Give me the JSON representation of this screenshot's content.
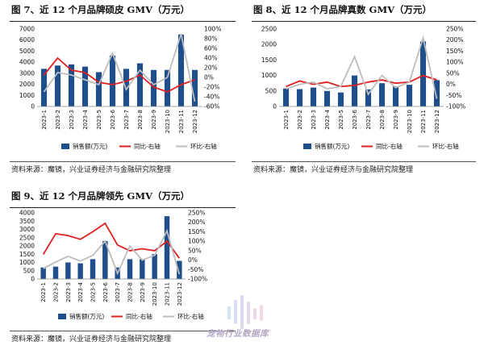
{
  "figures": [
    {
      "id": "fig7",
      "title": "图 7、近 12 个月品牌硕皮 GMV（万元）",
      "source": "资料来源：魔镜，兴业证券经济与金融研究院整理"
    },
    {
      "id": "fig8",
      "title": "图 8、近 12 个月品牌真数 GMV（万元）",
      "source": "资料来源：魔镜，兴业证券经济与金融研究院整理"
    },
    {
      "id": "fig9",
      "title": "图 9、近 12 个月品牌领先 GMV（万元）",
      "source": "资料来源：魔镜，兴业证券经济与金融研究院整理"
    }
  ],
  "watermark": {
    "text": "宠物行业数据库"
  },
  "colors": {
    "bar": "#1f4e8c",
    "yoy": "#e02020",
    "mom": "#bdbdbd"
  },
  "chart_data": [
    {
      "type": "bar",
      "categories": [
        "2023-1",
        "2023-2",
        "2023-3",
        "2023-4",
        "2023-5",
        "2023-6",
        "2023-7",
        "2023-8",
        "2023-9",
        "2023-10",
        "2023-11",
        "2023-12"
      ],
      "series": [
        {
          "name": "销售额(万元)",
          "axis": "left",
          "kind": "bar",
          "values": [
            3400,
            3700,
            3800,
            3600,
            3100,
            4600,
            3400,
            3900,
            3300,
            3300,
            6500,
            3300
          ]
        },
        {
          "name": "同比-右轴",
          "axis": "right",
          "kind": "line",
          "values": [
            5,
            40,
            15,
            10,
            -10,
            -15,
            -8,
            5,
            -20,
            -30,
            -15,
            -5
          ]
        },
        {
          "name": "环比-右轴",
          "axis": "right",
          "kind": "line",
          "values": [
            -30,
            10,
            5,
            -5,
            -15,
            50,
            -25,
            15,
            -15,
            0,
            90,
            -50
          ]
        }
      ],
      "left_ticks": [
        "0",
        "1000",
        "2000",
        "3000",
        "4000",
        "5000",
        "6000",
        "7000"
      ],
      "right_ticks": [
        "-60%",
        "-40%",
        "-20%",
        "0%",
        "20%",
        "40%",
        "60%",
        "80%",
        "100%"
      ],
      "ylim": [
        0,
        7000
      ],
      "y2lim": [
        -60,
        100
      ],
      "legend": [
        "销售额(万元)",
        "同比-右轴",
        "环比-右轴"
      ],
      "legend_position": "bottom"
    },
    {
      "type": "bar",
      "categories": [
        "2023-1",
        "2023-2",
        "2023-3",
        "2023-4",
        "2023-5",
        "2023-6",
        "2023-7",
        "2023-8",
        "2023-9",
        "2023-10",
        "2023-11",
        "2023-12"
      ],
      "series": [
        {
          "name": "销售额(万元)",
          "axis": "left",
          "kind": "bar",
          "values": [
            580,
            560,
            610,
            500,
            450,
            1000,
            550,
            750,
            650,
            700,
            2100,
            850
          ]
        },
        {
          "name": "同比-右轴",
          "axis": "right",
          "kind": "line",
          "values": [
            -10,
            15,
            0,
            10,
            -10,
            -5,
            10,
            20,
            5,
            10,
            40,
            20
          ]
        },
        {
          "name": "环比-右轴",
          "axis": "right",
          "kind": "line",
          "values": [
            -20,
            0,
            10,
            -20,
            -10,
            125,
            -45,
            40,
            -15,
            10,
            210,
            -65
          ]
        }
      ],
      "left_ticks": [
        "0",
        "500",
        "1000",
        "1500",
        "2000",
        "2500"
      ],
      "right_ticks": [
        "-100%",
        "-50%",
        "0%",
        "50%",
        "100%",
        "150%",
        "200%",
        "250%"
      ],
      "ylim": [
        0,
        2500
      ],
      "y2lim": [
        -100,
        250
      ],
      "legend": [
        "销售额(万元)",
        "同比-右轴",
        "环比-右轴"
      ],
      "legend_position": "bottom"
    },
    {
      "type": "bar",
      "categories": [
        "2023-1",
        "2023-2",
        "2023-3",
        "2023-4",
        "2023-5",
        "2023-6",
        "2023-7",
        "2023-8",
        "2023-9",
        "2023-10",
        "2023-11",
        "2023-12"
      ],
      "series": [
        {
          "name": "销售额(万元)",
          "axis": "left",
          "kind": "bar",
          "values": [
            700,
            750,
            1000,
            950,
            1200,
            2300,
            700,
            1200,
            1200,
            1500,
            3800,
            1100
          ]
        },
        {
          "name": "同比-右轴",
          "axis": "right",
          "kind": "line",
          "values": [
            30,
            140,
            130,
            110,
            150,
            195,
            80,
            50,
            60,
            50,
            100,
            10
          ]
        },
        {
          "name": "环比-右轴",
          "axis": "right",
          "kind": "line",
          "values": [
            -45,
            -10,
            20,
            -5,
            25,
            100,
            -70,
            75,
            0,
            25,
            155,
            -75
          ]
        }
      ],
      "left_ticks": [
        "0",
        "500",
        "1000",
        "1500",
        "2000",
        "2500",
        "3000",
        "3500",
        "4000"
      ],
      "right_ticks": [
        "-100%",
        "-50%",
        "0%",
        "50%",
        "100%",
        "150%",
        "200%",
        "250%"
      ],
      "ylim": [
        0,
        4000
      ],
      "y2lim": [
        -100,
        250
      ],
      "legend": [
        "销售额(万元)",
        "同比-右轴",
        "环比-右轴"
      ],
      "legend_position": "bottom"
    }
  ]
}
